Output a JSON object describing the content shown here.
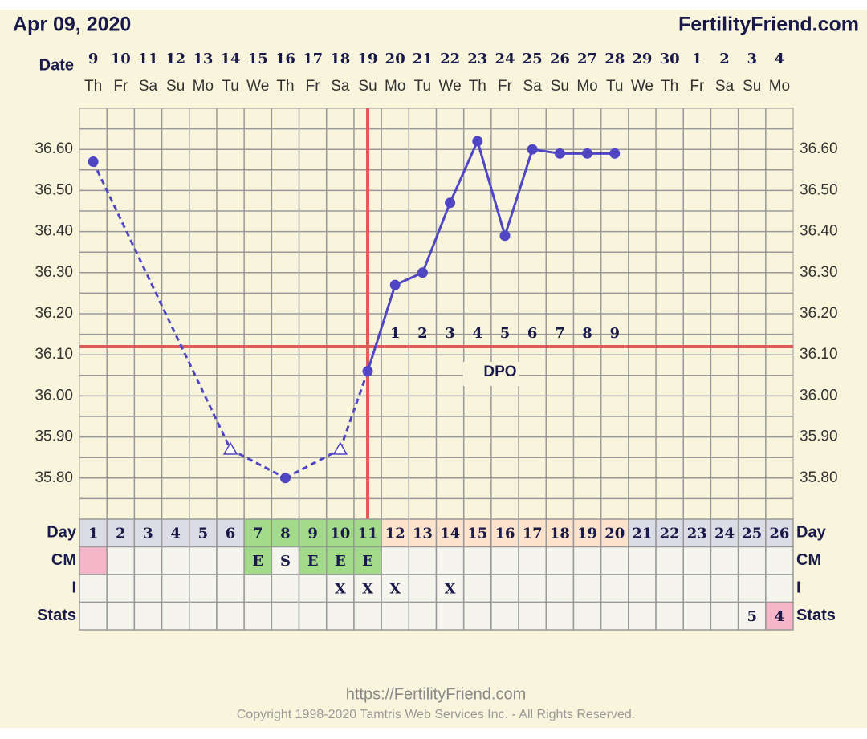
{
  "chart_data": {
    "type": "line",
    "title": "Apr 09, 2020",
    "site": "FertilityFriend.com",
    "x_label": "Date",
    "categories": [
      "9",
      "10",
      "11",
      "12",
      "13",
      "14",
      "15",
      "16",
      "17",
      "18",
      "19",
      "20",
      "21",
      "22",
      "23",
      "24",
      "25",
      "26",
      "27",
      "28",
      "29",
      "30",
      "1",
      "2",
      "3",
      "4"
    ],
    "weekdays": [
      "Th",
      "Fr",
      "Sa",
      "Su",
      "Mo",
      "Tu",
      "We",
      "Th",
      "Fr",
      "Sa",
      "Su",
      "Mo",
      "Tu",
      "We",
      "Th",
      "Fr",
      "Sa",
      "Su",
      "Mo",
      "Tu",
      "We",
      "Th",
      "Fr",
      "Sa",
      "Su",
      "Mo"
    ],
    "series": [
      {
        "color": "#5046c4",
        "values": [
          36.57,
          null,
          null,
          null,
          null,
          35.87,
          null,
          35.8,
          null,
          35.87,
          36.06,
          36.27,
          36.3,
          36.47,
          36.62,
          36.39,
          36.6,
          36.59,
          36.59,
          36.59,
          null,
          null,
          null,
          null,
          null,
          null
        ],
        "markers": [
          "dot",
          null,
          null,
          null,
          null,
          "triangle",
          null,
          "dot",
          null,
          "triangle",
          "dot",
          "dot",
          "dot",
          "dot",
          "dot",
          "dot",
          "dot",
          "dot",
          "dot",
          "dot",
          null,
          null,
          null,
          null,
          null,
          null
        ]
      }
    ],
    "ylim": [
      35.7,
      36.7
    ],
    "yticks": [
      {
        "value": 35.8,
        "label": "35.80"
      },
      {
        "value": 35.9,
        "label": "35.90"
      },
      {
        "value": 36.0,
        "label": "36.00"
      },
      {
        "value": 36.1,
        "label": "36.10"
      },
      {
        "value": 36.2,
        "label": "36.20"
      },
      {
        "value": 36.3,
        "label": "36.30"
      },
      {
        "value": 36.4,
        "label": "36.40"
      },
      {
        "value": 36.5,
        "label": "36.50"
      },
      {
        "value": 36.6,
        "label": "36.60"
      }
    ],
    "minor_yticks": [
      35.75,
      35.85,
      35.95,
      36.05,
      36.15,
      36.25,
      36.35,
      36.45,
      36.55,
      36.65
    ],
    "grid": true,
    "coverline": 36.12,
    "coverline_color": "#e05a5a",
    "ovulation_cycle_day": 11,
    "dpo": [
      null,
      null,
      null,
      null,
      null,
      null,
      null,
      null,
      null,
      null,
      null,
      1,
      2,
      3,
      4,
      5,
      6,
      7,
      8,
      9,
      null,
      null,
      null,
      null,
      null,
      null
    ],
    "dpo_label": "DPO",
    "table": {
      "day_label": "Day",
      "cycle_days": [
        1,
        2,
        3,
        4,
        5,
        6,
        7,
        8,
        9,
        10,
        11,
        12,
        13,
        14,
        15,
        16,
        17,
        18,
        19,
        20,
        21,
        22,
        23,
        24,
        25,
        26
      ],
      "cycle_day_colors": [
        "#dcdce6",
        "#dcdce6",
        "#dcdce6",
        "#dcdce6",
        "#dcdce6",
        "#dcdce6",
        "#a3db8a",
        "#a3db8a",
        "#a3db8a",
        "#a3db8a",
        "#a3db8a",
        "#fde3cc",
        "#fde3cc",
        "#fde3cc",
        "#fde3cc",
        "#fde3cc",
        "#fde3cc",
        "#fde3cc",
        "#fde3cc",
        "#fde3cc",
        "#dcdce6",
        "#dcdce6",
        "#dcdce6",
        "#dcdce6",
        "#dcdce6",
        "#dcdce6"
      ],
      "cm_label": "CM",
      "cm": [
        null,
        null,
        null,
        null,
        null,
        null,
        "E",
        "S",
        "E",
        "E",
        "E",
        null,
        null,
        null,
        null,
        null,
        null,
        null,
        null,
        null,
        null,
        null,
        null,
        null,
        null,
        null
      ],
      "cm_colors": [
        "#f4b6c8",
        null,
        null,
        null,
        null,
        null,
        "#a3db8a",
        null,
        "#a3db8a",
        "#a3db8a",
        "#a3db8a",
        null,
        null,
        null,
        null,
        null,
        null,
        null,
        null,
        null,
        null,
        null,
        null,
        null,
        null,
        null
      ],
      "i_label": "I",
      "intercourse": [
        null,
        null,
        null,
        null,
        null,
        null,
        null,
        null,
        null,
        "X",
        "X",
        "X",
        null,
        "X",
        null,
        null,
        null,
        null,
        null,
        null,
        null,
        null,
        null,
        null,
        null,
        null
      ],
      "stats_label": "Stats",
      "stats": [
        null,
        null,
        null,
        null,
        null,
        null,
        null,
        null,
        null,
        null,
        null,
        null,
        null,
        null,
        null,
        null,
        null,
        null,
        null,
        null,
        null,
        null,
        null,
        null,
        5,
        4
      ],
      "stats_colors": [
        null,
        null,
        null,
        null,
        null,
        null,
        null,
        null,
        null,
        null,
        null,
        null,
        null,
        null,
        null,
        null,
        null,
        null,
        null,
        null,
        null,
        null,
        null,
        null,
        null,
        "#f4b6c8"
      ]
    },
    "footer_url": "https://FertilityFriend.com",
    "copyright": "Copyright 1998-2020 Tamtris Web Services Inc. - All Rights Reserved."
  }
}
